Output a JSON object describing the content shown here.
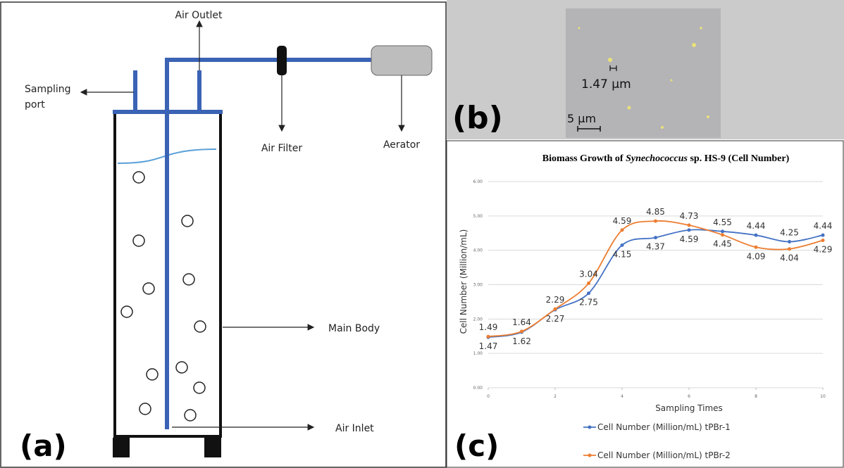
{
  "panels": {
    "a": "(a)",
    "b": "(b)",
    "c": "(c)"
  },
  "diagram": {
    "labels": {
      "air_outlet": "Air Outlet",
      "sampling_port": "Sampling port",
      "air_filter": "Air Filter",
      "aerator": "Aerator",
      "main_body": "Main Body",
      "air_inlet": "Air Inlet"
    }
  },
  "micrograph": {
    "cell_size": "1.47 µm",
    "scale_bar": "5 µm"
  },
  "chart_data": {
    "type": "line",
    "title": [
      "Biomass Growth of ",
      "Synechococcus",
      " sp. HS-9 (Cell Number)"
    ],
    "x_label": "Sampling Times",
    "y_label": "Cell Number (Million/mL)",
    "x": [
      0,
      1,
      2,
      3,
      4,
      5,
      6,
      7,
      8,
      9,
      10
    ],
    "xlim": [
      0,
      10
    ],
    "xticks": [
      0,
      2,
      4,
      6,
      8,
      10
    ],
    "ylim": [
      0,
      6
    ],
    "yticks": [
      {
        "value": 0,
        "label": "0.00"
      },
      {
        "value": 1,
        "label": "1.00"
      },
      {
        "value": 2,
        "label": "2.00"
      },
      {
        "value": 3,
        "label": "3.00"
      },
      {
        "value": 4,
        "label": "4.00"
      },
      {
        "value": 5,
        "label": "5.00"
      },
      {
        "value": 6,
        "label": "6.00"
      }
    ],
    "grid": true,
    "legend": "bottom",
    "series": [
      {
        "name": "Cell Number (Million/mL) tPBr-1",
        "color": "#4472c4",
        "values": [
          1.47,
          1.62,
          2.27,
          2.75,
          4.15,
          4.37,
          4.59,
          4.55,
          4.44,
          4.25,
          4.44
        ]
      },
      {
        "name": "Cell Number (Million/mL) tPBr-2",
        "color": "#ed7d31",
        "values": [
          1.49,
          1.64,
          2.29,
          3.04,
          4.59,
          4.85,
          4.73,
          4.45,
          4.09,
          4.04,
          4.29
        ]
      }
    ]
  }
}
